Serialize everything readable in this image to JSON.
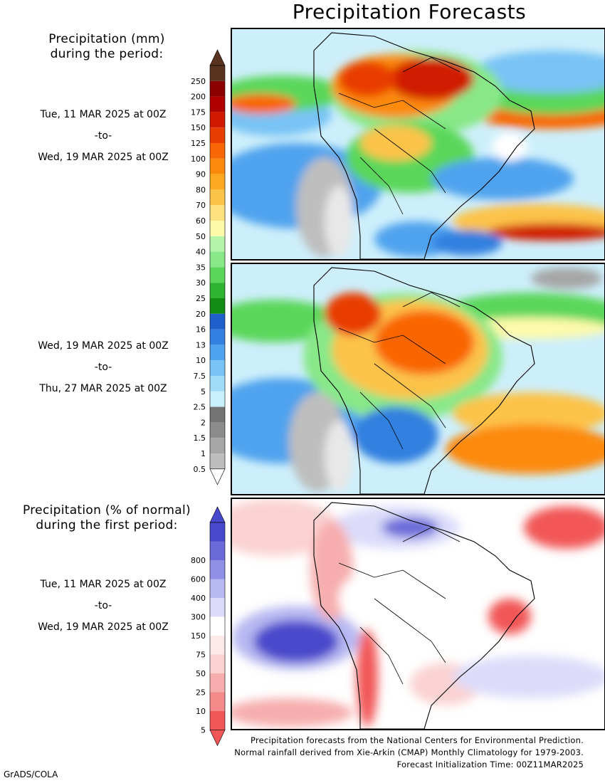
{
  "title": "Precipitation Forecasts",
  "legend_top": {
    "heading_line1": "Precipitation (mm)",
    "heading_line2": "during the period:",
    "values": [
      "0.5",
      "1",
      "1.5",
      "2",
      "2.5",
      "5",
      "7.5",
      "10",
      "13",
      "16",
      "20",
      "25",
      "30",
      "35",
      "40",
      "50",
      "60",
      "70",
      "80",
      "90",
      "100",
      "125",
      "150",
      "175",
      "200",
      "250"
    ],
    "colors": [
      "#bebebe",
      "#a6a6a6",
      "#8c8c8c",
      "#737373",
      "#c9f0fc",
      "#a0dcfa",
      "#78c3f5",
      "#4fa3ee",
      "#3380e0",
      "#1f5fcc",
      "#138c13",
      "#2fb42f",
      "#5ad75a",
      "#88e888",
      "#b4f4a8",
      "#fdfaaa",
      "#fde17c",
      "#fcc349",
      "#fda821",
      "#fc8a0a",
      "#f96605",
      "#e93e02",
      "#d01a00",
      "#b00000",
      "#8c0000",
      "#5a3320"
    ]
  },
  "period1": {
    "start": "Tue, 11 MAR 2025 at 00Z",
    "to": "-to-",
    "end": "Wed, 19 MAR 2025 at 00Z"
  },
  "period2": {
    "start": "Wed, 19 MAR 2025 at 00Z",
    "to": "-to-",
    "end": "Thu, 27 MAR 2025 at 00Z"
  },
  "legend_bottom": {
    "heading_line1": "Precipitation (% of normal)",
    "heading_line2": "during the first period:",
    "values": [
      "5",
      "10",
      "25",
      "50",
      "75",
      "150",
      "300",
      "400",
      "600",
      "800"
    ],
    "colors": [
      "#f25757",
      "#f58a8a",
      "#f7adad",
      "#fbd2d2",
      "#fde9e9",
      "#ffffff",
      "#dcdcfa",
      "#b8b8f2",
      "#9090e6",
      "#6a6ad9",
      "#4848cc"
    ]
  },
  "period3": {
    "start": "Tue, 11 MAR 2025 at 00Z",
    "to": "-to-",
    "end": "Wed, 19 MAR 2025 at 00Z"
  },
  "footer": {
    "line1": "Precipitation forecasts from the National Centers for Environmental Prediction.",
    "line2": "Normal rainfall derived from Xie-Arkin (CMAP) Monthly Climatology for 1979-2003.",
    "line3": "Forecast Initialization Time: 00Z11MAR2025"
  },
  "credit": "GrADS/COLA"
}
